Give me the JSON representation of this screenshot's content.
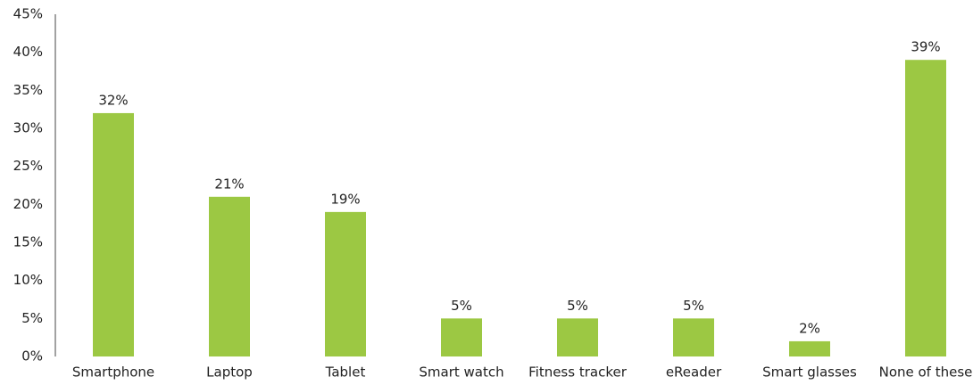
{
  "chart_data": {
    "type": "bar",
    "categories": [
      "Smartphone",
      "Laptop",
      "Tablet",
      "Smart watch",
      "Fitness tracker",
      "eReader",
      "Smart glasses",
      "None of these"
    ],
    "values": [
      32,
      21,
      19,
      5,
      5,
      5,
      2,
      39
    ],
    "value_labels": [
      "32%",
      "21%",
      "19%",
      "5%",
      "5%",
      "5%",
      "2%",
      "39%"
    ],
    "color": "#9cc843",
    "ylim": [
      0,
      45
    ],
    "yticks": [
      {
        "value": 0,
        "label": "0%"
      },
      {
        "value": 5,
        "label": "5%"
      },
      {
        "value": 10,
        "label": "10%"
      },
      {
        "value": 15,
        "label": "15%"
      },
      {
        "value": 20,
        "label": "20%"
      },
      {
        "value": 25,
        "label": "25%"
      },
      {
        "value": 30,
        "label": "30%"
      },
      {
        "value": 35,
        "label": "35%"
      },
      {
        "value": 40,
        "label": "40%"
      },
      {
        "value": 45,
        "label": "45%"
      }
    ],
    "grid": false
  }
}
